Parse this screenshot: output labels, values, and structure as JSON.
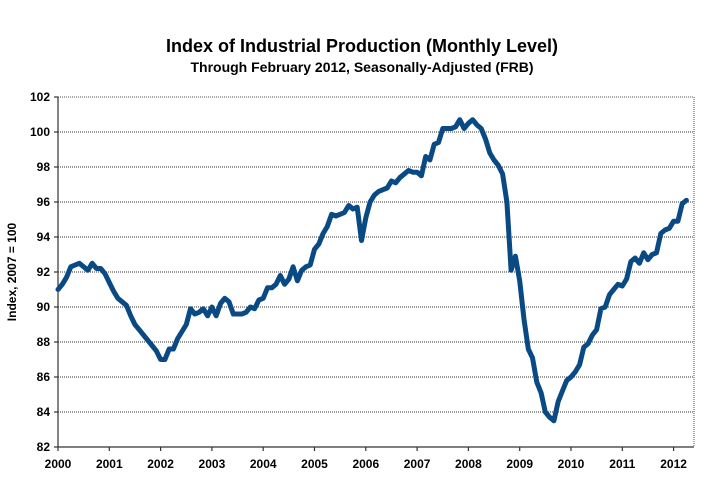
{
  "chart_data": {
    "type": "line",
    "title": "Index of Industrial Production (Monthly Level)",
    "subtitle": "Through February 2012, Seasonally-Adjusted (FRB)",
    "xlabel": "",
    "ylabel": "Index, 2007 = 100",
    "ylim": [
      82,
      102
    ],
    "yticks": [
      "82",
      "84",
      "86",
      "88",
      "90",
      "92",
      "94",
      "96",
      "98",
      "100",
      "102"
    ],
    "xlim": [
      2000,
      2012.17
    ],
    "xticks": [
      "2000",
      "2001",
      "2002",
      "2003",
      "2004",
      "2005",
      "2006",
      "2007",
      "2008",
      "2009",
      "2010",
      "2011",
      "2012"
    ],
    "grid": true,
    "legend": "none",
    "line_color": "#0a4a84",
    "series": [
      {
        "name": "Industrial Production Index",
        "start": "2000-01",
        "frequency": "monthly",
        "values": [
          91.0,
          91.3,
          91.7,
          92.3,
          92.4,
          92.5,
          92.3,
          92.1,
          92.5,
          92.2,
          92.2,
          91.9,
          91.4,
          90.9,
          90.5,
          90.3,
          90.1,
          89.5,
          89.0,
          88.7,
          88.4,
          88.1,
          87.8,
          87.5,
          87.0,
          87.0,
          87.6,
          87.6,
          88.2,
          88.6,
          89.0,
          89.9,
          89.6,
          89.7,
          89.9,
          89.5,
          90.0,
          89.5,
          90.2,
          90.5,
          90.3,
          89.6,
          89.6,
          89.6,
          89.7,
          90.0,
          89.9,
          90.4,
          90.5,
          91.1,
          91.1,
          91.3,
          91.8,
          91.3,
          91.6,
          92.3,
          91.5,
          92.1,
          92.3,
          92.4,
          93.3,
          93.6,
          94.2,
          94.6,
          95.3,
          95.2,
          95.3,
          95.4,
          95.8,
          95.6,
          95.7,
          93.8,
          95.1,
          96.0,
          96.4,
          96.6,
          96.7,
          96.8,
          97.2,
          97.1,
          97.4,
          97.6,
          97.8,
          97.7,
          97.7,
          97.5,
          98.6,
          98.4,
          99.3,
          99.4,
          100.2,
          100.2,
          100.2,
          100.3,
          100.7,
          100.2,
          100.5,
          100.7,
          100.4,
          100.2,
          99.6,
          98.8,
          98.4,
          98.1,
          97.6,
          96.0,
          92.1,
          92.9,
          91.5,
          89.3,
          87.6,
          87.1,
          85.7,
          85.1,
          84.0,
          83.7,
          83.5,
          84.6,
          85.2,
          85.8,
          86.0,
          86.3,
          86.7,
          87.7,
          87.9,
          88.4,
          88.7,
          89.9,
          90.0,
          90.7,
          91.0,
          91.3,
          91.2,
          91.6,
          92.6,
          92.8,
          92.5,
          93.1,
          92.7,
          93.0,
          93.1,
          94.2,
          94.4,
          94.5,
          94.9,
          94.9,
          95.9,
          96.1
        ]
      }
    ]
  }
}
